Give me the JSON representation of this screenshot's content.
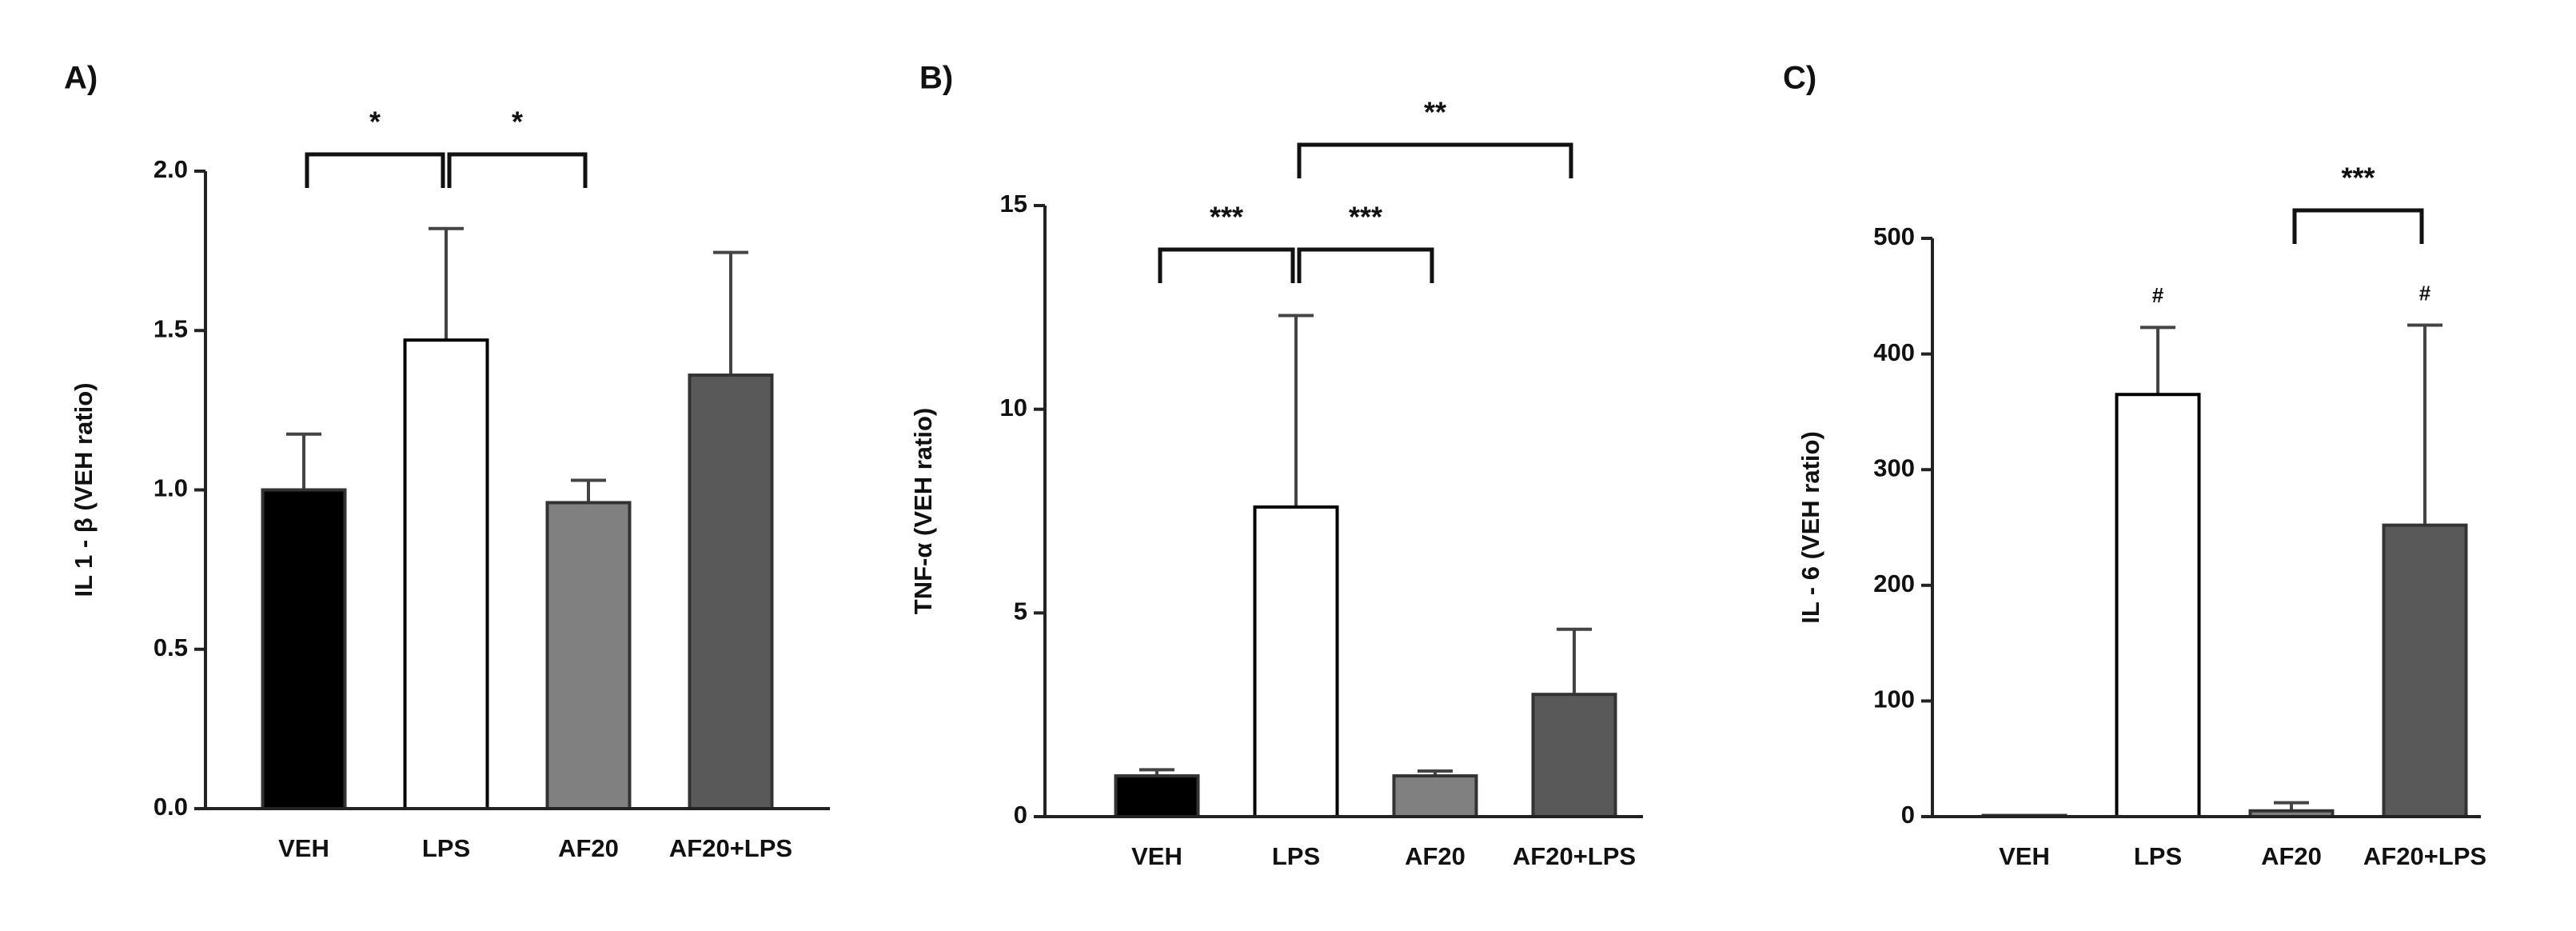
{
  "chart_data": [
    {
      "type": "bar",
      "panel_label": "A)",
      "ylabel": "IL 1 - β (VEH ratio)",
      "categories": [
        "VEH",
        "LPS",
        "AF20",
        "AF20+LPS"
      ],
      "values": [
        1.0,
        1.47,
        0.96,
        1.36
      ],
      "errors": [
        0.175,
        0.35,
        0.07,
        0.385
      ],
      "colors": [
        "#000000",
        "#ffffff",
        "#808080",
        "#595959"
      ],
      "ylim": [
        0,
        2
      ],
      "yticks": [
        {
          "value": 0,
          "label": "0.0"
        },
        {
          "value": 0.5,
          "label": "0.5"
        },
        {
          "value": 1,
          "label": "1.0"
        },
        {
          "value": 1.5,
          "label": "1.5"
        },
        {
          "value": 2,
          "label": "2.0"
        }
      ],
      "brackets": [
        {
          "from": "VEH",
          "to": "LPS",
          "label": "*"
        },
        {
          "from": "LPS",
          "to": "AF20",
          "label": "*"
        }
      ]
    },
    {
      "type": "bar",
      "panel_label": "B)",
      "ylabel": "TNF-α (VEH ratio)",
      "categories": [
        "VEH",
        "LPS",
        "AF20",
        "AF20+LPS"
      ],
      "values": [
        1.0,
        7.6,
        1.0,
        3.0
      ],
      "errors": [
        0.15,
        4.7,
        0.12,
        1.6
      ],
      "colors": [
        "#000000",
        "#ffffff",
        "#808080",
        "#595959"
      ],
      "ylim": [
        0,
        15
      ],
      "yticks": [
        0,
        5,
        10,
        15
      ],
      "brackets": [
        {
          "from": "VEH",
          "to": "LPS",
          "label": "***"
        },
        {
          "from": "LPS",
          "to": "AF20",
          "label": "***"
        },
        {
          "from": "LPS",
          "to": "AF20+LPS",
          "label": "**"
        }
      ]
    },
    {
      "type": "bar",
      "panel_label": "C)",
      "ylabel": "IL - 6 (VEH ratio)",
      "categories": [
        "VEH",
        "LPS",
        "AF20",
        "AF20+LPS"
      ],
      "values": [
        1,
        365,
        5,
        252
      ],
      "errors": [
        0,
        58,
        7,
        173
      ],
      "colors": [
        "#000000",
        "#ffffff",
        "#808080",
        "#595959"
      ],
      "ylim": [
        0,
        500
      ],
      "yticks": [
        0,
        100,
        200,
        300,
        400,
        500
      ],
      "brackets": [
        {
          "from": "AF20",
          "to": "AF20+LPS",
          "label": "***"
        }
      ],
      "marks": [
        {
          "category": "LPS",
          "label": "#"
        },
        {
          "category": "AF20+LPS",
          "label": "#"
        }
      ]
    }
  ]
}
